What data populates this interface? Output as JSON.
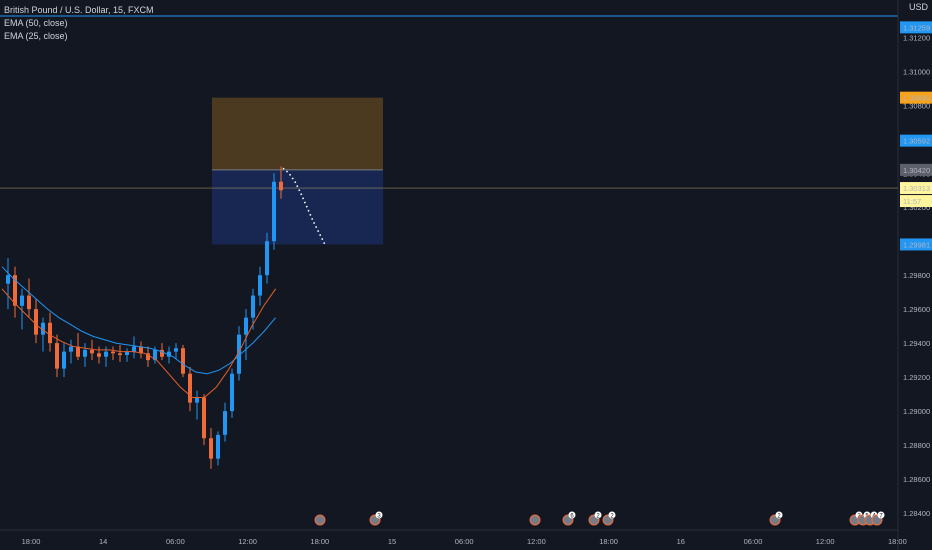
{
  "header": {
    "symbol_line": "British Pound / U.S. Dollar, 15, FXCM",
    "ema50": "EMA (50, close)",
    "ema25": "EMA (25, close)",
    "currency": "USD"
  },
  "price_tags": {
    "top": "1.31259",
    "orange": "1.30845",
    "blue_upper": "1.30592",
    "gray": "1.30420",
    "current": "1.30313",
    "countdown": "11:57",
    "blue_lower": "1.29981"
  },
  "colors": {
    "background": "#131722",
    "bull": "#2196f3",
    "bear": "#ef6c3a",
    "ema50": "#2196f3",
    "ema25": "#e4602b",
    "target_zone": "#f7a21b",
    "stop_zone": "#2962ff",
    "tag_blue": "#2196f3",
    "tag_orange": "#f7a21b",
    "tag_yellow": "#fff59d"
  },
  "chart_data": {
    "type": "candlestick",
    "title": "British Pound / U.S. Dollar, 15, FXCM",
    "ylim": [
      1.283,
      1.3142
    ],
    "price_ticks": [
      "1.28400",
      "1.28600",
      "1.28800",
      "1.29000",
      "1.29200",
      "1.29400",
      "1.29600",
      "1.29800",
      "1.30000",
      "1.30200",
      "1.30400",
      "1.30600",
      "1.30800",
      "1.31000",
      "1.31200"
    ],
    "time_ticks": [
      "18:00",
      "14",
      "06:00",
      "12:00",
      "18:00",
      "15",
      "06:00",
      "12:00",
      "18:00",
      "16",
      "06:00",
      "12:00",
      "18:00"
    ],
    "candles": [
      [
        1.2975,
        1.299,
        1.296,
        1.298
      ],
      [
        1.298,
        1.2985,
        1.2955,
        1.2962
      ],
      [
        1.2962,
        1.2972,
        1.2948,
        1.2968
      ],
      [
        1.2968,
        1.2978,
        1.2955,
        1.296
      ],
      [
        1.296,
        1.2966,
        1.294,
        1.2945
      ],
      [
        1.2945,
        1.2955,
        1.2935,
        1.2952
      ],
      [
        1.2952,
        1.2958,
        1.2935,
        1.294
      ],
      [
        1.294,
        1.2945,
        1.292,
        1.2925
      ],
      [
        1.2925,
        1.294,
        1.292,
        1.2935
      ],
      [
        1.2935,
        1.2942,
        1.2928,
        1.2938
      ],
      [
        1.2938,
        1.2946,
        1.293,
        1.2932
      ],
      [
        1.2932,
        1.294,
        1.2926,
        1.2936
      ],
      [
        1.2936,
        1.2942,
        1.293,
        1.2934
      ],
      [
        1.2934,
        1.2938,
        1.2928,
        1.2932
      ],
      [
        1.2932,
        1.2938,
        1.2926,
        1.2935
      ],
      [
        1.2935,
        1.2938,
        1.293,
        1.2934
      ],
      [
        1.2934,
        1.2939,
        1.2929,
        1.2933
      ],
      [
        1.2933,
        1.2937,
        1.2929,
        1.2935
      ],
      [
        1.2935,
        1.2944,
        1.2931,
        1.2938
      ],
      [
        1.2938,
        1.2941,
        1.2931,
        1.2934
      ],
      [
        1.2934,
        1.2938,
        1.2926,
        1.293
      ],
      [
        1.293,
        1.2938,
        1.2928,
        1.2936
      ],
      [
        1.2936,
        1.294,
        1.293,
        1.2932
      ],
      [
        1.2932,
        1.2938,
        1.2928,
        1.2935
      ],
      [
        1.2935,
        1.294,
        1.2931,
        1.2937
      ],
      [
        1.2937,
        1.2939,
        1.292,
        1.2922
      ],
      [
        1.2922,
        1.2926,
        1.29,
        1.2905
      ],
      [
        1.2905,
        1.2912,
        1.2895,
        1.2908
      ],
      [
        1.2908,
        1.291,
        1.288,
        1.2884
      ],
      [
        1.2884,
        1.289,
        1.2866,
        1.2872
      ],
      [
        1.2872,
        1.2888,
        1.2868,
        1.2886
      ],
      [
        1.2886,
        1.2905,
        1.2882,
        1.29
      ],
      [
        1.29,
        1.2925,
        1.2896,
        1.2922
      ],
      [
        1.2922,
        1.295,
        1.2918,
        1.2945
      ],
      [
        1.2945,
        1.296,
        1.293,
        1.2955
      ],
      [
        1.2955,
        1.2972,
        1.2948,
        1.2968
      ],
      [
        1.2968,
        1.2985,
        1.2962,
        1.298
      ],
      [
        1.298,
        1.3005,
        1.2975,
        1.3
      ],
      [
        1.3,
        1.304,
        1.2995,
        1.3035
      ],
      [
        1.3035,
        1.3044,
        1.3025,
        1.303
      ]
    ],
    "ema50": [
      1.2985,
      1.2978,
      1.2972,
      1.2966,
      1.296,
      1.2955,
      1.2951,
      1.2947,
      1.2944,
      1.2942,
      1.294,
      1.2939,
      1.2938,
      1.2937,
      1.2935,
      1.2932,
      1.2927,
      1.2923,
      1.2922,
      1.2924,
      1.2928,
      1.2934,
      1.294,
      1.2947,
      1.2955
    ],
    "ema25": [
      1.2972,
      1.2964,
      1.2957,
      1.295,
      1.2945,
      1.2941,
      1.2938,
      1.2937,
      1.2936,
      1.2936,
      1.2935,
      1.2935,
      1.2934,
      1.293,
      1.2922,
      1.2914,
      1.2908,
      1.2908,
      1.2914,
      1.2924,
      1.2936,
      1.295,
      1.2962,
      1.2972
    ],
    "position": {
      "entry": 1.3042,
      "target": 1.30845,
      "stop": 1.29981
    },
    "projection": [
      1.3043,
      1.304,
      1.3035,
      1.3028,
      1.302,
      1.3012,
      1.3005,
      1.2998
    ]
  },
  "event_markers": [
    {
      "label": ""
    },
    {
      "label": "3"
    },
    {
      "label": ""
    },
    {
      "label": "6"
    },
    {
      "label": "2"
    },
    {
      "label": "2"
    },
    {
      "label": "2"
    },
    {
      "label": "2"
    },
    {
      "label": "5"
    },
    {
      "label": "4"
    },
    {
      "label": "7"
    }
  ]
}
